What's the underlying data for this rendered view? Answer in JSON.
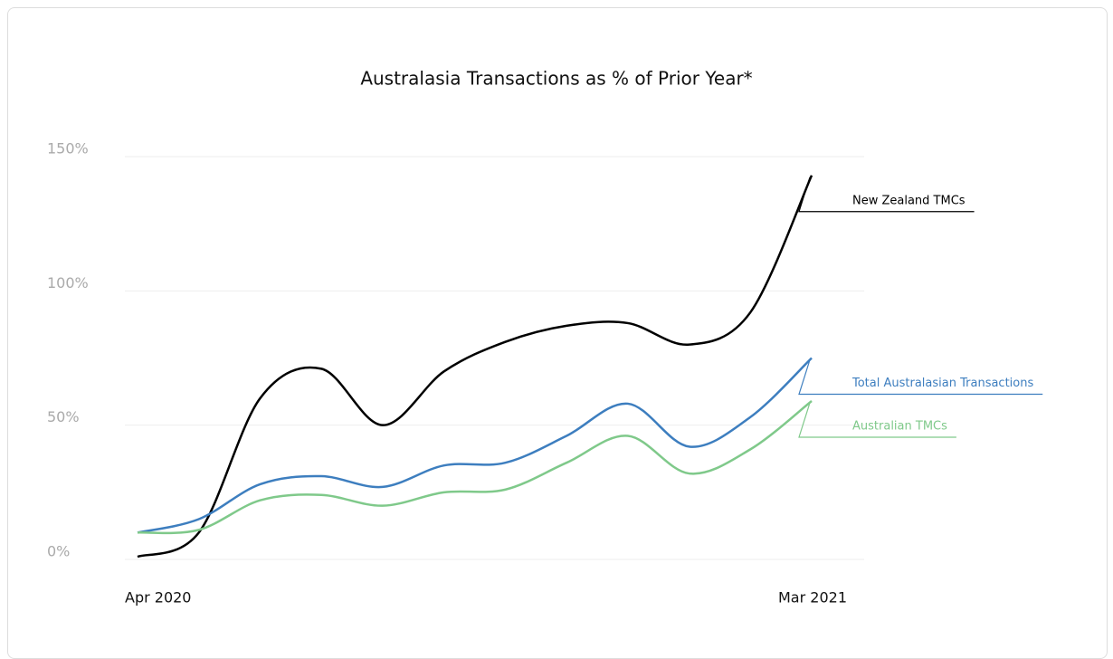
{
  "chart_data": {
    "type": "line",
    "title": "Australasia Transactions as % of Prior Year*",
    "categories": [
      "Apr 2020",
      null,
      null,
      null,
      null,
      null,
      null,
      null,
      null,
      null,
      null,
      "Mar 2021"
    ],
    "series": [
      {
        "name": "New Zealand TMCs",
        "color": "#000000",
        "values": [
          1,
          10,
          60,
          71,
          50,
          70,
          81,
          87,
          88,
          80,
          92,
          143
        ]
      },
      {
        "name": "Total Australasian Transactions",
        "color": "#3d7ebf",
        "values": [
          10,
          15,
          28,
          31,
          27,
          35,
          36,
          46,
          58,
          42,
          53,
          75
        ]
      },
      {
        "name": "Australian TMCs",
        "color": "#7fc98a",
        "values": [
          10,
          11,
          22,
          24,
          20,
          25,
          26,
          36,
          46,
          32,
          41,
          59
        ]
      }
    ],
    "ylim": [
      0,
      150
    ],
    "yticks": [
      {
        "value": 0,
        "label": "0%"
      },
      {
        "value": 50,
        "label": "50%"
      },
      {
        "value": 100,
        "label": "100%"
      },
      {
        "value": 150,
        "label": "150%"
      }
    ],
    "grid": true
  }
}
